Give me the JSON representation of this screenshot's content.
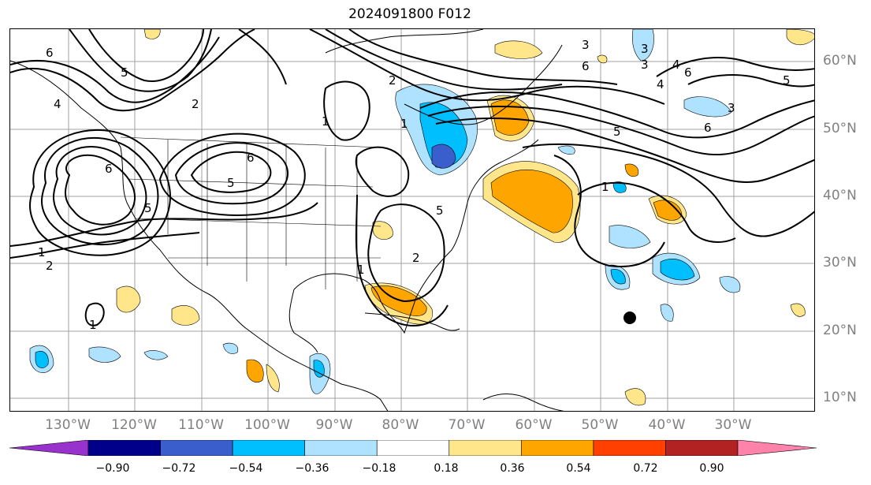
{
  "title": "2024091800 F012",
  "lon_labels": [
    "130°W",
    "120°W",
    "110°W",
    "100°W",
    "90°W",
    "80°W",
    "70°W",
    "60°W",
    "50°W",
    "40°W",
    "30°W"
  ],
  "lat_labels": [
    "60°N",
    "50°N",
    "40°N",
    "30°N",
    "20°N",
    "10°N"
  ],
  "contour_labels": [
    "1",
    "2",
    "6",
    "5",
    "4",
    "2",
    "6",
    "5",
    "6",
    "1",
    "2",
    "1",
    "5",
    "3",
    "4",
    "6",
    "5",
    "6",
    "3",
    "4",
    "1",
    "5",
    "3",
    "1",
    "2",
    "1",
    "6",
    "5",
    "3"
  ],
  "colorbar": {
    "ticks": [
      "−0.90",
      "−0.72",
      "−0.54",
      "−0.36",
      "−0.18",
      "0.18",
      "0.36",
      "0.54",
      "0.72",
      "0.90"
    ],
    "colors": [
      "#9932cc",
      "#00008b",
      "#3a5fcd",
      "#00bfff",
      "#aee2ff",
      "#ffffff",
      "#ffe68a",
      "#ffa500",
      "#ff4000",
      "#b22222",
      "#ff82ab"
    ]
  },
  "marker": "black-dot"
}
